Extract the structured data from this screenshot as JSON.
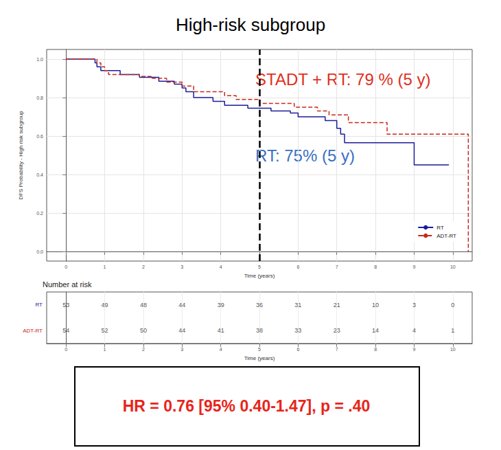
{
  "chart_data": {
    "type": "step",
    "title": "High-risk subgroup",
    "x_label": "Time (years)",
    "y_label": "DFS Probability - High risk subgroup",
    "xlim": [
      -0.5,
      10.5
    ],
    "xticks": [
      0,
      1,
      2,
      3,
      4,
      5,
      6,
      7,
      8,
      9,
      10
    ],
    "ylim": [
      -0.05,
      1.05
    ],
    "yticks": [
      {
        "value": 0,
        "label": "0.0"
      },
      {
        "value": 0.2,
        "label": "0.2"
      },
      {
        "value": 0.4,
        "label": "0.4"
      },
      {
        "value": 0.6,
        "label": "0.6"
      },
      {
        "value": 0.8,
        "label": "0.8"
      },
      {
        "value": 1,
        "label": "1.0"
      }
    ],
    "grid": true,
    "legend": "bottom-right",
    "series": [
      {
        "name": "RT",
        "color": "#1c1c9a",
        "line_style": "solid",
        "x": [
          0,
          0.75,
          0.8,
          0.9,
          1.4,
          1.9,
          2.4,
          2.8,
          3.0,
          3.1,
          3.3,
          3.8,
          4.1,
          4.7,
          5.3,
          5.8,
          6.0,
          6.7,
          7.0,
          7.1,
          7.2,
          9.0,
          9.9
        ],
        "values": [
          1.0,
          0.98,
          0.96,
          0.94,
          0.92,
          0.905,
          0.885,
          0.87,
          0.85,
          0.83,
          0.8,
          0.78,
          0.76,
          0.745,
          0.73,
          0.72,
          0.7,
          0.68,
          0.64,
          0.61,
          0.565,
          0.45,
          0.45
        ]
      },
      {
        "name": "ADT-RT",
        "color": "#c8281c",
        "line_style": "dashed",
        "x": [
          0,
          0.8,
          0.9,
          1.0,
          1.1,
          1.9,
          2.2,
          2.6,
          3.0,
          3.3,
          4.1,
          4.4,
          5.0,
          5.9,
          6.5,
          6.8,
          7.3,
          8.3,
          10.4
        ],
        "values": [
          1.0,
          0.98,
          0.96,
          0.94,
          0.92,
          0.91,
          0.9,
          0.88,
          0.86,
          0.83,
          0.81,
          0.79,
          0.77,
          0.75,
          0.73,
          0.71,
          0.67,
          0.61,
          0
        ]
      }
    ],
    "reference_line": {
      "x": 5,
      "color": "#000000",
      "line_style": "dashed"
    },
    "annotations": [
      {
        "text": "STADT + RT: 79 % (5 y)",
        "color": "#e0301e"
      },
      {
        "text": "RT: 75% (5 y)",
        "color": "#3a6fc4"
      }
    ],
    "risk_table": {
      "title": "Number at risk",
      "x_label": "Time (years)",
      "times": [
        0,
        1,
        2,
        3,
        4,
        5,
        6,
        7,
        8,
        9,
        10
      ],
      "rows": [
        {
          "name": "RT",
          "color": "#1c1c9a",
          "values": [
            53,
            49,
            48,
            44,
            39,
            36,
            31,
            21,
            10,
            3,
            0
          ]
        },
        {
          "name": "ADT-RT",
          "color": "#c8281c",
          "values": [
            54,
            52,
            50,
            44,
            41,
            38,
            33,
            23,
            14,
            4,
            1
          ]
        }
      ]
    },
    "footnote": {
      "text": "HR = 0.76 [95% 0.40-1.47], p = .40",
      "color": "#e8241a"
    }
  }
}
